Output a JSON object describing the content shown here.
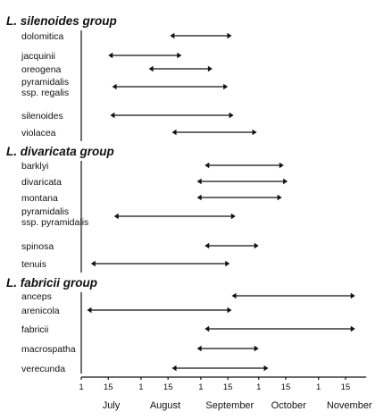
{
  "chart_data": {
    "type": "range",
    "x_axis": {
      "tick_labels": [
        "1",
        "15",
        "1",
        "15",
        "1",
        "15",
        "1",
        "15",
        "1",
        "15"
      ],
      "months": [
        "July",
        "August",
        "September",
        "October",
        "November"
      ]
    },
    "groups": [
      {
        "name": "L. silenoides group",
        "items": [
          {
            "label": [
              "dolomitica"
            ],
            "start": "08-16",
            "end": "09-17"
          },
          {
            "label": [
              "jacquinii"
            ],
            "start": "07-15",
            "end": "08-22"
          },
          {
            "label": [
              "oreogena"
            ],
            "start": "08-05",
            "end": "09-07"
          },
          {
            "label": [
              "pyramidalis",
              "ssp. regalis"
            ],
            "start": "07-17",
            "end": "09-15"
          },
          {
            "label": [
              "silenoides"
            ],
            "start": "07-16",
            "end": "09-18"
          },
          {
            "label": [
              "violacea"
            ],
            "start": "08-17",
            "end": "09-30"
          }
        ]
      },
      {
        "name": "L. divaricata group",
        "items": [
          {
            "label": [
              "barklyi"
            ],
            "start": "09-03",
            "end": "10-14"
          },
          {
            "label": [
              "divaricata"
            ],
            "start": "08-30",
            "end": "10-16"
          },
          {
            "label": [
              "montana"
            ],
            "start": "08-30",
            "end": "10-13"
          },
          {
            "label": [
              "pyramidalis",
              "ssp. pyramidalis"
            ],
            "start": "07-18",
            "end": "09-19"
          },
          {
            "label": [
              "spinosa"
            ],
            "start": "09-03",
            "end": "10-01"
          },
          {
            "label": [
              "tenuis"
            ],
            "start": "07-06",
            "end": "09-16"
          }
        ]
      },
      {
        "name": "L. fabricii group",
        "items": [
          {
            "label": [
              "anceps"
            ],
            "start": "09-17",
            "end": "11-20"
          },
          {
            "label": [
              "arenicola"
            ],
            "start": "07-04",
            "end": "09-17"
          },
          {
            "label": [
              "fabricii"
            ],
            "start": "09-03",
            "end": "11-20"
          },
          {
            "label": [
              "macrospatha"
            ],
            "start": "08-30",
            "end": "10-01"
          },
          {
            "label": [
              "verecunda"
            ],
            "start": "08-17",
            "end": "10-06"
          }
        ]
      }
    ]
  }
}
